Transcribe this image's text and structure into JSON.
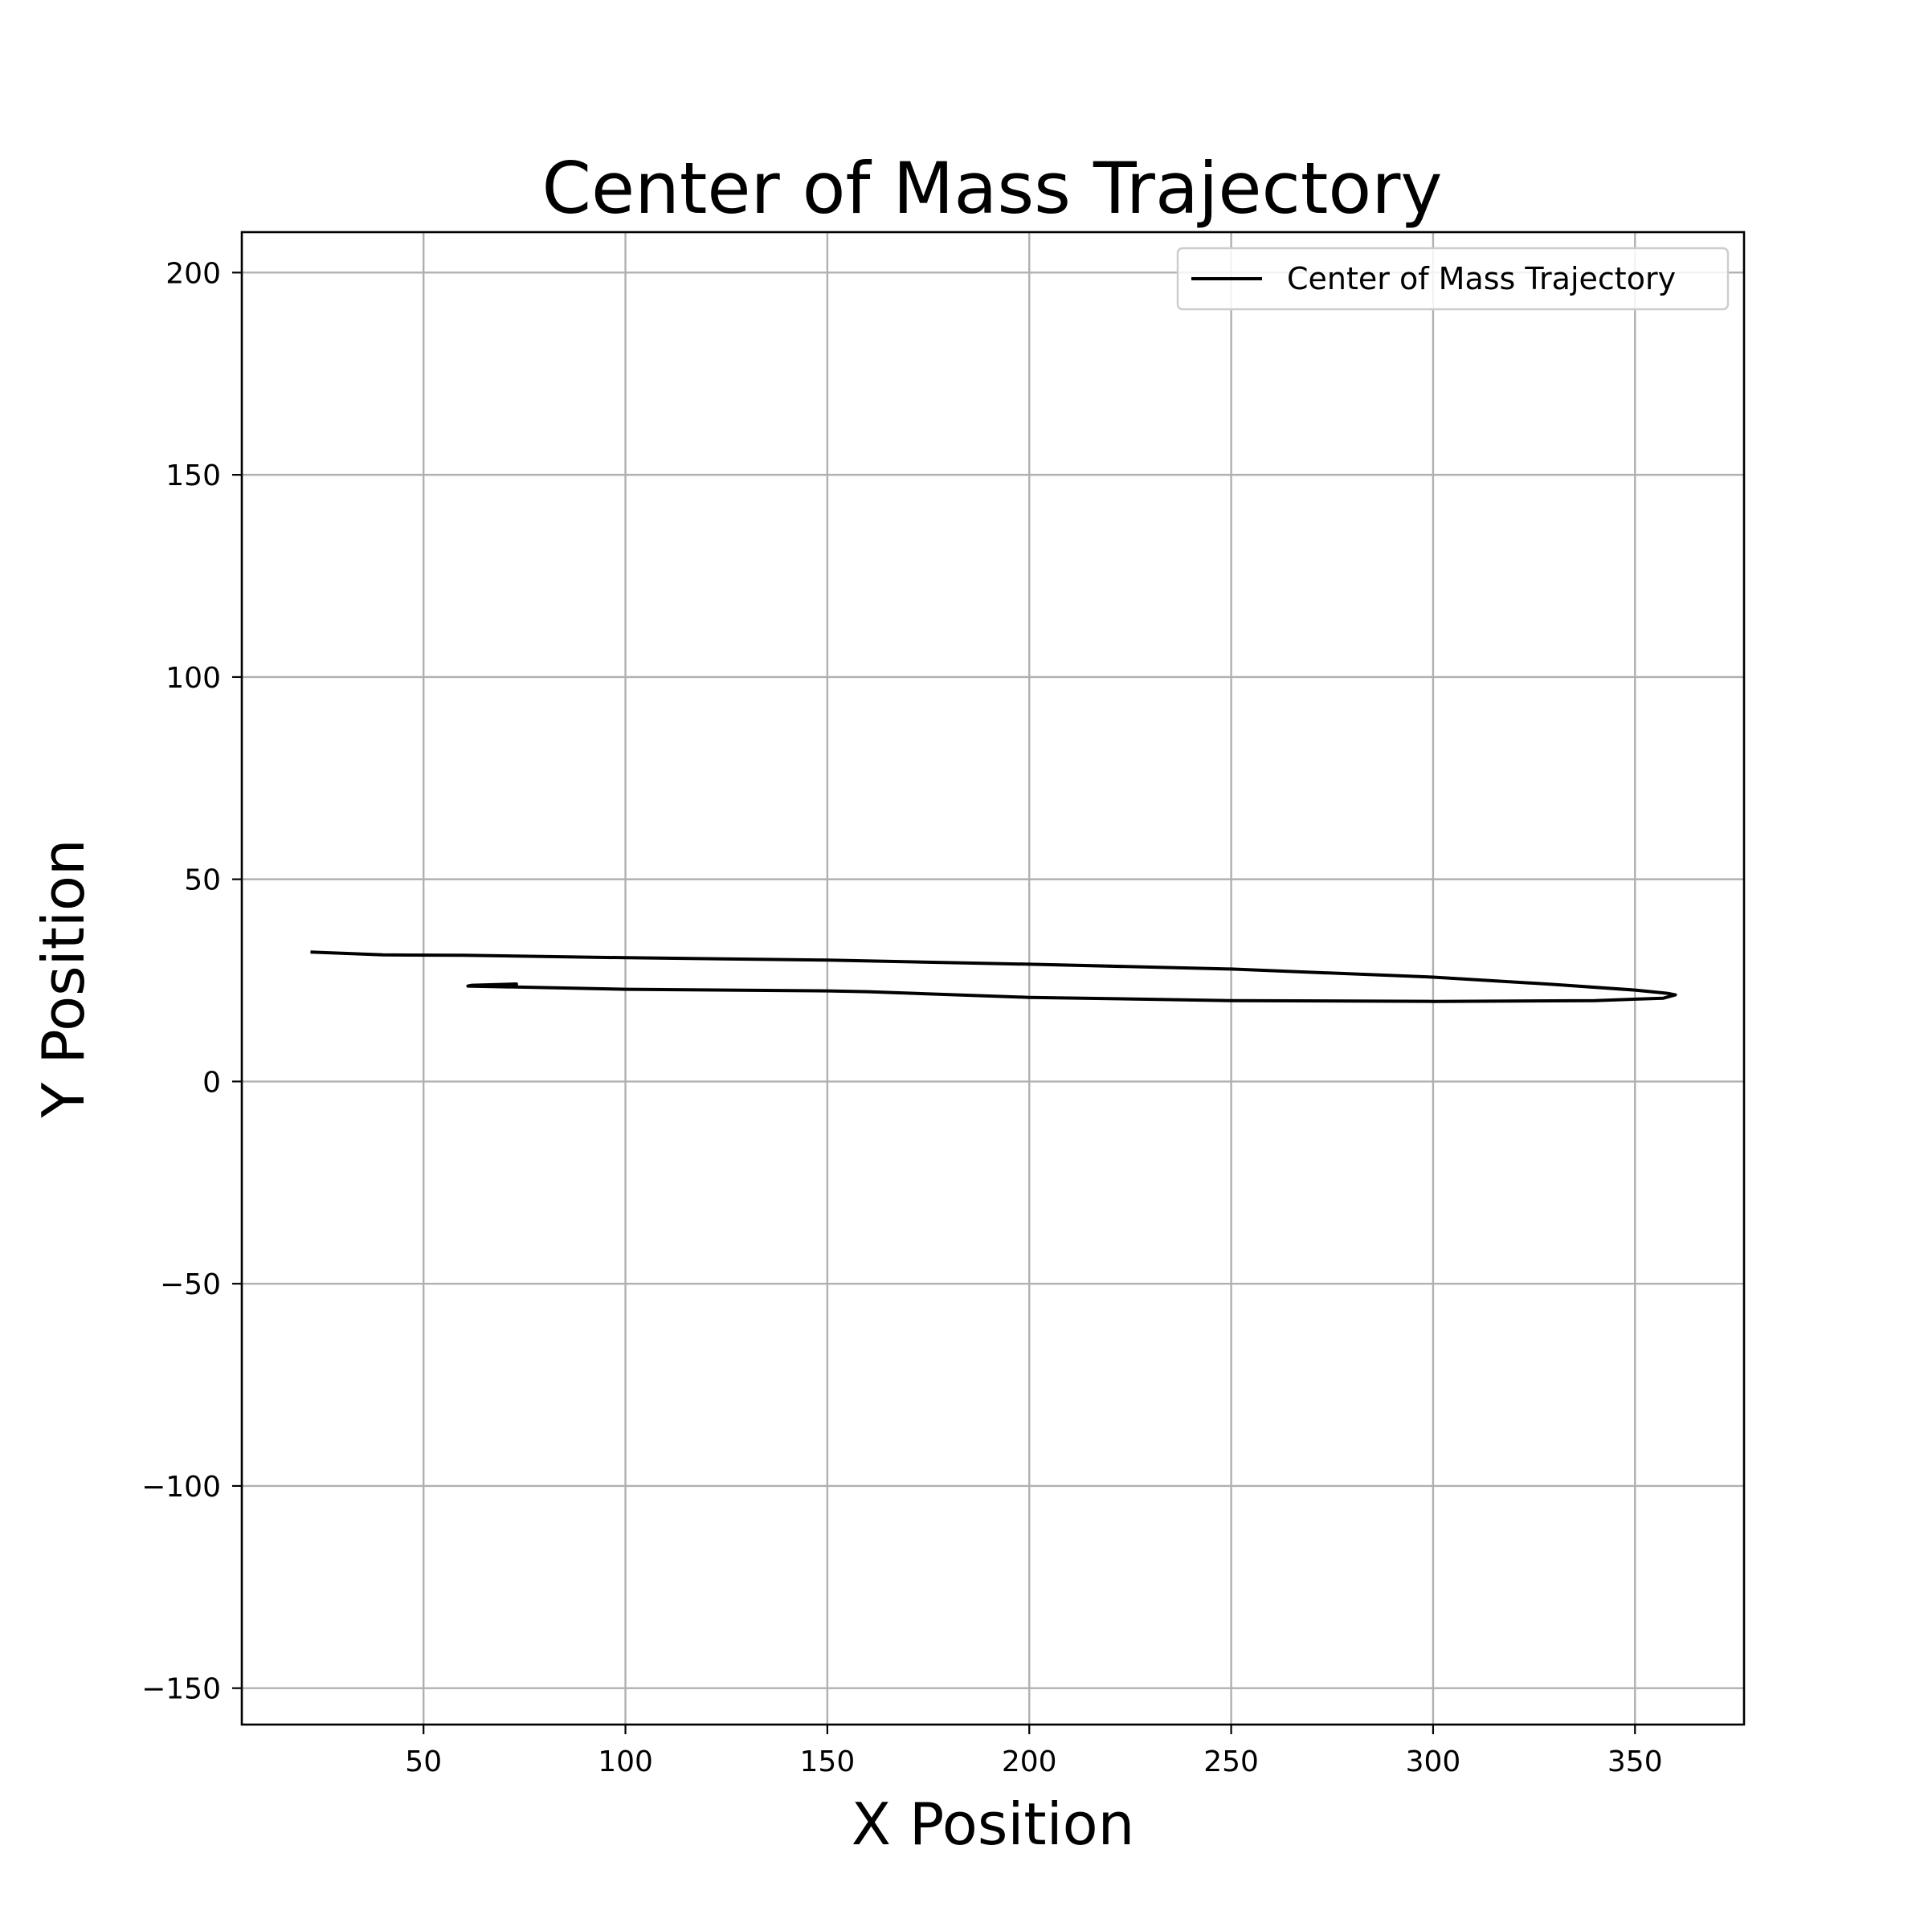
{
  "chart_data": {
    "type": "line",
    "title": "Center of Mass Trajectory",
    "xlabel": "X Position",
    "ylabel": "Y Position",
    "xlim": [
      5,
      377
    ],
    "ylim": [
      -159,
      210
    ],
    "xticks": [
      50,
      100,
      150,
      200,
      250,
      300,
      350
    ],
    "yticks": [
      -150,
      -100,
      -50,
      0,
      50,
      100,
      150,
      200
    ],
    "grid": true,
    "legend_position": "top-right",
    "series": [
      {
        "name": "Center of Mass Trajectory",
        "color": "#000000",
        "x": [
          22,
          40,
          60,
          100,
          150,
          200,
          250,
          300,
          330,
          350,
          358,
          360,
          357,
          340,
          300,
          250,
          200,
          160,
          150,
          100,
          61,
          62,
          73,
          73
        ],
        "y": [
          32,
          31.3,
          31.2,
          30.6,
          30,
          29,
          27.8,
          25.8,
          24,
          22.6,
          21.8,
          21.4,
          20.6,
          20,
          19.8,
          20,
          20.8,
          22.2,
          22.4,
          22.8,
          23.6,
          23.8,
          24.1,
          23.7
        ]
      }
    ]
  }
}
